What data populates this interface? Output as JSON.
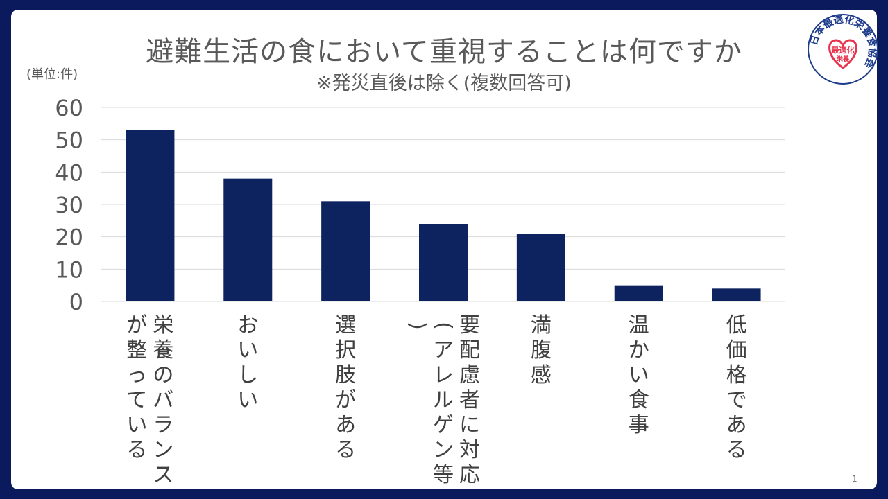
{
  "title": "避難生活の食において重視することは何ですか",
  "subtitle": "※発災直後は除く(複数回答可)",
  "unit_label": "(単位:件)",
  "page_number": "1",
  "logo": {
    "ring_text": "日本最適化栄養食協会",
    "center_text": "最適化",
    "center_sub": "栄養",
    "colors": {
      "ring": "#1e3c8c",
      "heart": "#e8344e"
    }
  },
  "colors": {
    "bar": "#0d2360",
    "grid": "#d9d9d9",
    "axis_text": "#595959"
  },
  "chart_data": {
    "type": "bar",
    "title": "避難生活の食において重視することは何ですか",
    "subtitle": "※発災直後は除く(複数回答可)",
    "ylabel": "(単位:件)",
    "ylim": [
      0,
      60
    ],
    "yticks": [
      0,
      10,
      20,
      30,
      40,
      50,
      60
    ],
    "grid": true,
    "categories": [
      "栄養のバランスが整っている",
      "おいしい",
      "選択肢がある",
      "要配慮者に対応(アレルゲン等)",
      "満腹感",
      "温かい食事",
      "低価格である"
    ],
    "values": [
      53,
      38,
      31,
      24,
      21,
      5,
      4
    ]
  }
}
